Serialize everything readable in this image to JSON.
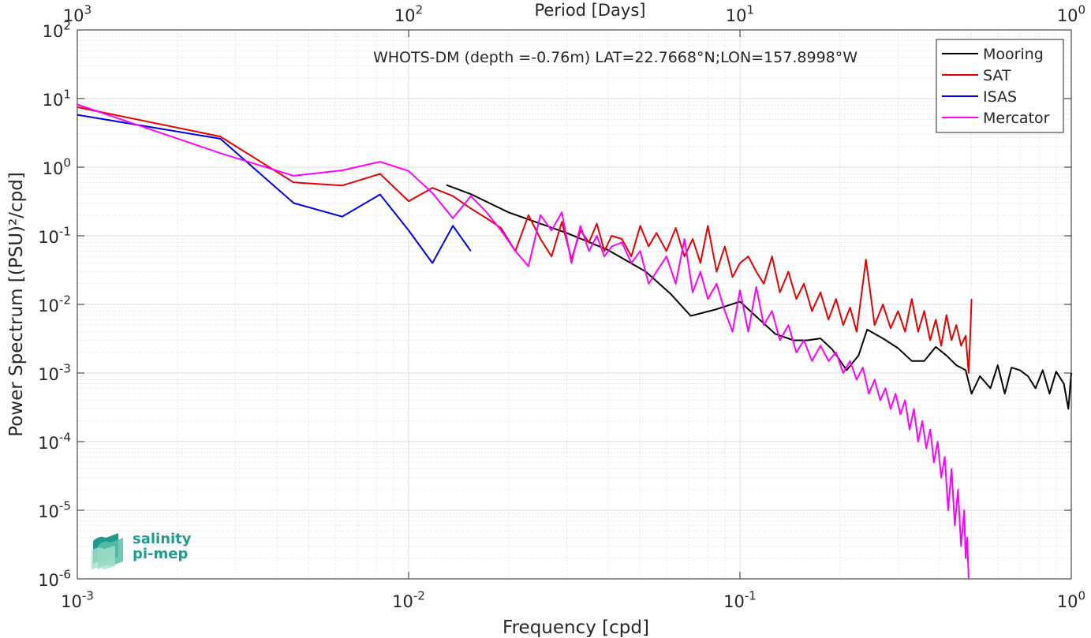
{
  "chart_data": {
    "type": "line",
    "title": "WHOTS-DM (depth =-0.76m) LAT=22.7668°N;LON=157.8998°W",
    "xlabel": "Frequency [cpd]",
    "ylabel": "Power Spectrum [(PSU)²/cpd]",
    "top_axis_label": "Period [Days]",
    "x_scale": "log",
    "y_scale": "log",
    "xlim": [
      0.001,
      1
    ],
    "ylim": [
      1e-06,
      100
    ],
    "grid": true,
    "legend_position": "top-right",
    "x_ticks": [
      {
        "value": 0.001,
        "base": "10",
        "exp": "-3"
      },
      {
        "value": 0.01,
        "base": "10",
        "exp": "-2"
      },
      {
        "value": 0.1,
        "base": "10",
        "exp": "-1"
      },
      {
        "value": 1,
        "base": "10",
        "exp": "0"
      }
    ],
    "y_ticks": [
      {
        "value": 1e-06,
        "base": "10",
        "exp": "-6"
      },
      {
        "value": 1e-05,
        "base": "10",
        "exp": "-5"
      },
      {
        "value": 0.0001,
        "base": "10",
        "exp": "-4"
      },
      {
        "value": 0.001,
        "base": "10",
        "exp": "-3"
      },
      {
        "value": 0.01,
        "base": "10",
        "exp": "-2"
      },
      {
        "value": 0.1,
        "base": "10",
        "exp": "-1"
      },
      {
        "value": 1,
        "base": "10",
        "exp": "0"
      },
      {
        "value": 10,
        "base": "10",
        "exp": "1"
      },
      {
        "value": 100,
        "base": "10",
        "exp": "2"
      }
    ],
    "top_ticks": [
      {
        "freq": 0.001,
        "base": "10",
        "exp": "3"
      },
      {
        "freq": 0.01,
        "base": "10",
        "exp": "2"
      },
      {
        "freq": 0.1,
        "base": "10",
        "exp": "1"
      },
      {
        "freq": 1,
        "base": "10",
        "exp": "0"
      }
    ],
    "series": [
      {
        "name": "Mooring",
        "color": "#000000",
        "x": [
          0.013,
          0.0155,
          0.02,
          0.03,
          0.04,
          0.052,
          0.062,
          0.071,
          0.085,
          0.1,
          0.11,
          0.128,
          0.145,
          0.16,
          0.175,
          0.19,
          0.21,
          0.228,
          0.242,
          0.27,
          0.3,
          0.33,
          0.36,
          0.39,
          0.42,
          0.45,
          0.48,
          0.5,
          0.53,
          0.57,
          0.6,
          0.63,
          0.66,
          0.7,
          0.74,
          0.78,
          0.82,
          0.86,
          0.9,
          0.95,
          0.98,
          1.0
        ],
        "y": [
          0.55,
          0.4,
          0.22,
          0.11,
          0.062,
          0.03,
          0.014,
          0.0068,
          0.0085,
          0.011,
          0.0072,
          0.0037,
          0.003,
          0.003,
          0.0032,
          0.0022,
          0.0011,
          0.0018,
          0.0043,
          0.0032,
          0.0023,
          0.0015,
          0.0015,
          0.0024,
          0.0018,
          0.0013,
          0.0011,
          0.0005,
          0.0009,
          0.0006,
          0.0013,
          0.0005,
          0.0012,
          0.0011,
          0.0009,
          0.0006,
          0.0011,
          0.0005,
          0.00105,
          0.0007,
          0.0003,
          0.001
        ]
      },
      {
        "name": "SAT",
        "color": "#e60000",
        "x": [
          0.001,
          0.0027,
          0.0045,
          0.0063,
          0.0082,
          0.01,
          0.0118,
          0.0136,
          0.0154,
          0.0172,
          0.019,
          0.021,
          0.023,
          0.025,
          0.027,
          0.029,
          0.031,
          0.033,
          0.035,
          0.037,
          0.039,
          0.041,
          0.044,
          0.047,
          0.05,
          0.053,
          0.056,
          0.06,
          0.064,
          0.068,
          0.072,
          0.076,
          0.08,
          0.085,
          0.09,
          0.095,
          0.1,
          0.106,
          0.112,
          0.118,
          0.125,
          0.132,
          0.14,
          0.148,
          0.156,
          0.165,
          0.175,
          0.185,
          0.195,
          0.205,
          0.215,
          0.225,
          0.24,
          0.255,
          0.27,
          0.285,
          0.3,
          0.315,
          0.33,
          0.345,
          0.36,
          0.375,
          0.39,
          0.405,
          0.42,
          0.435,
          0.45,
          0.465,
          0.48,
          0.49,
          0.495,
          0.5
        ],
        "y": [
          7.5,
          2.8,
          0.6,
          0.54,
          0.8,
          0.32,
          0.5,
          0.38,
          0.25,
          0.18,
          0.13,
          0.06,
          0.2,
          0.09,
          0.05,
          0.16,
          0.045,
          0.12,
          0.08,
          0.15,
          0.06,
          0.1,
          0.09,
          0.05,
          0.14,
          0.07,
          0.11,
          0.06,
          0.13,
          0.05,
          0.09,
          0.04,
          0.14,
          0.03,
          0.07,
          0.025,
          0.04,
          0.05,
          0.03,
          0.02,
          0.05,
          0.015,
          0.03,
          0.012,
          0.02,
          0.008,
          0.015,
          0.006,
          0.012,
          0.005,
          0.009,
          0.004,
          0.045,
          0.005,
          0.01,
          0.0045,
          0.008,
          0.004,
          0.012,
          0.004,
          0.008,
          0.003,
          0.006,
          0.0025,
          0.007,
          0.003,
          0.005,
          0.0025,
          0.0035,
          0.001,
          0.003,
          0.012
        ]
      },
      {
        "name": "ISAS",
        "color": "#0000e6",
        "x": [
          0.001,
          0.0027,
          0.0045,
          0.0063,
          0.0082,
          0.01,
          0.0118,
          0.0136,
          0.0154
        ],
        "y": [
          5.8,
          2.6,
          0.3,
          0.19,
          0.4,
          0.12,
          0.04,
          0.14,
          0.06
        ]
      },
      {
        "name": "Mercator",
        "color": "#ff00ff",
        "x": [
          0.001,
          0.0027,
          0.0045,
          0.0063,
          0.0082,
          0.01,
          0.0118,
          0.0136,
          0.0154,
          0.0172,
          0.019,
          0.021,
          0.023,
          0.025,
          0.027,
          0.029,
          0.031,
          0.033,
          0.035,
          0.037,
          0.039,
          0.041,
          0.044,
          0.047,
          0.05,
          0.053,
          0.056,
          0.06,
          0.064,
          0.068,
          0.072,
          0.076,
          0.08,
          0.085,
          0.09,
          0.095,
          0.1,
          0.106,
          0.112,
          0.118,
          0.125,
          0.132,
          0.14,
          0.148,
          0.156,
          0.165,
          0.175,
          0.185,
          0.195,
          0.205,
          0.215,
          0.225,
          0.235,
          0.245,
          0.255,
          0.265,
          0.275,
          0.285,
          0.295,
          0.305,
          0.315,
          0.325,
          0.335,
          0.345,
          0.355,
          0.365,
          0.375,
          0.385,
          0.395,
          0.405,
          0.415,
          0.425,
          0.435,
          0.445,
          0.455,
          0.465,
          0.475,
          0.48,
          0.485,
          0.49
        ],
        "y": [
          8.2,
          1.6,
          0.75,
          0.9,
          1.2,
          0.88,
          0.42,
          0.18,
          0.38,
          0.22,
          0.12,
          0.06,
          0.036,
          0.2,
          0.12,
          0.22,
          0.04,
          0.14,
          0.06,
          0.1,
          0.05,
          0.07,
          0.08,
          0.04,
          0.06,
          0.02,
          0.03,
          0.05,
          0.02,
          0.09,
          0.015,
          0.03,
          0.012,
          0.02,
          0.008,
          0.004,
          0.016,
          0.004,
          0.018,
          0.005,
          0.008,
          0.003,
          0.005,
          0.002,
          0.003,
          0.0015,
          0.0025,
          0.0015,
          0.002,
          0.001,
          0.0015,
          0.0008,
          0.0012,
          0.0005,
          0.0008,
          0.0004,
          0.0006,
          0.0003,
          0.0005,
          0.00025,
          0.0004,
          0.00015,
          0.0003,
          0.0001,
          0.0002,
          8e-05,
          0.00015,
          5e-05,
          0.0001,
          3e-05,
          6e-05,
          1e-05,
          4e-05,
          6e-06,
          2e-05,
          3e-06,
          1e-05,
          2e-06,
          4e-06,
          1e-06
        ]
      }
    ]
  },
  "logo": {
    "line1": "salinity",
    "line2": "pi-mep",
    "colors": [
      "#1e9b8c",
      "#5cc0a8",
      "#a8e0cc"
    ]
  }
}
